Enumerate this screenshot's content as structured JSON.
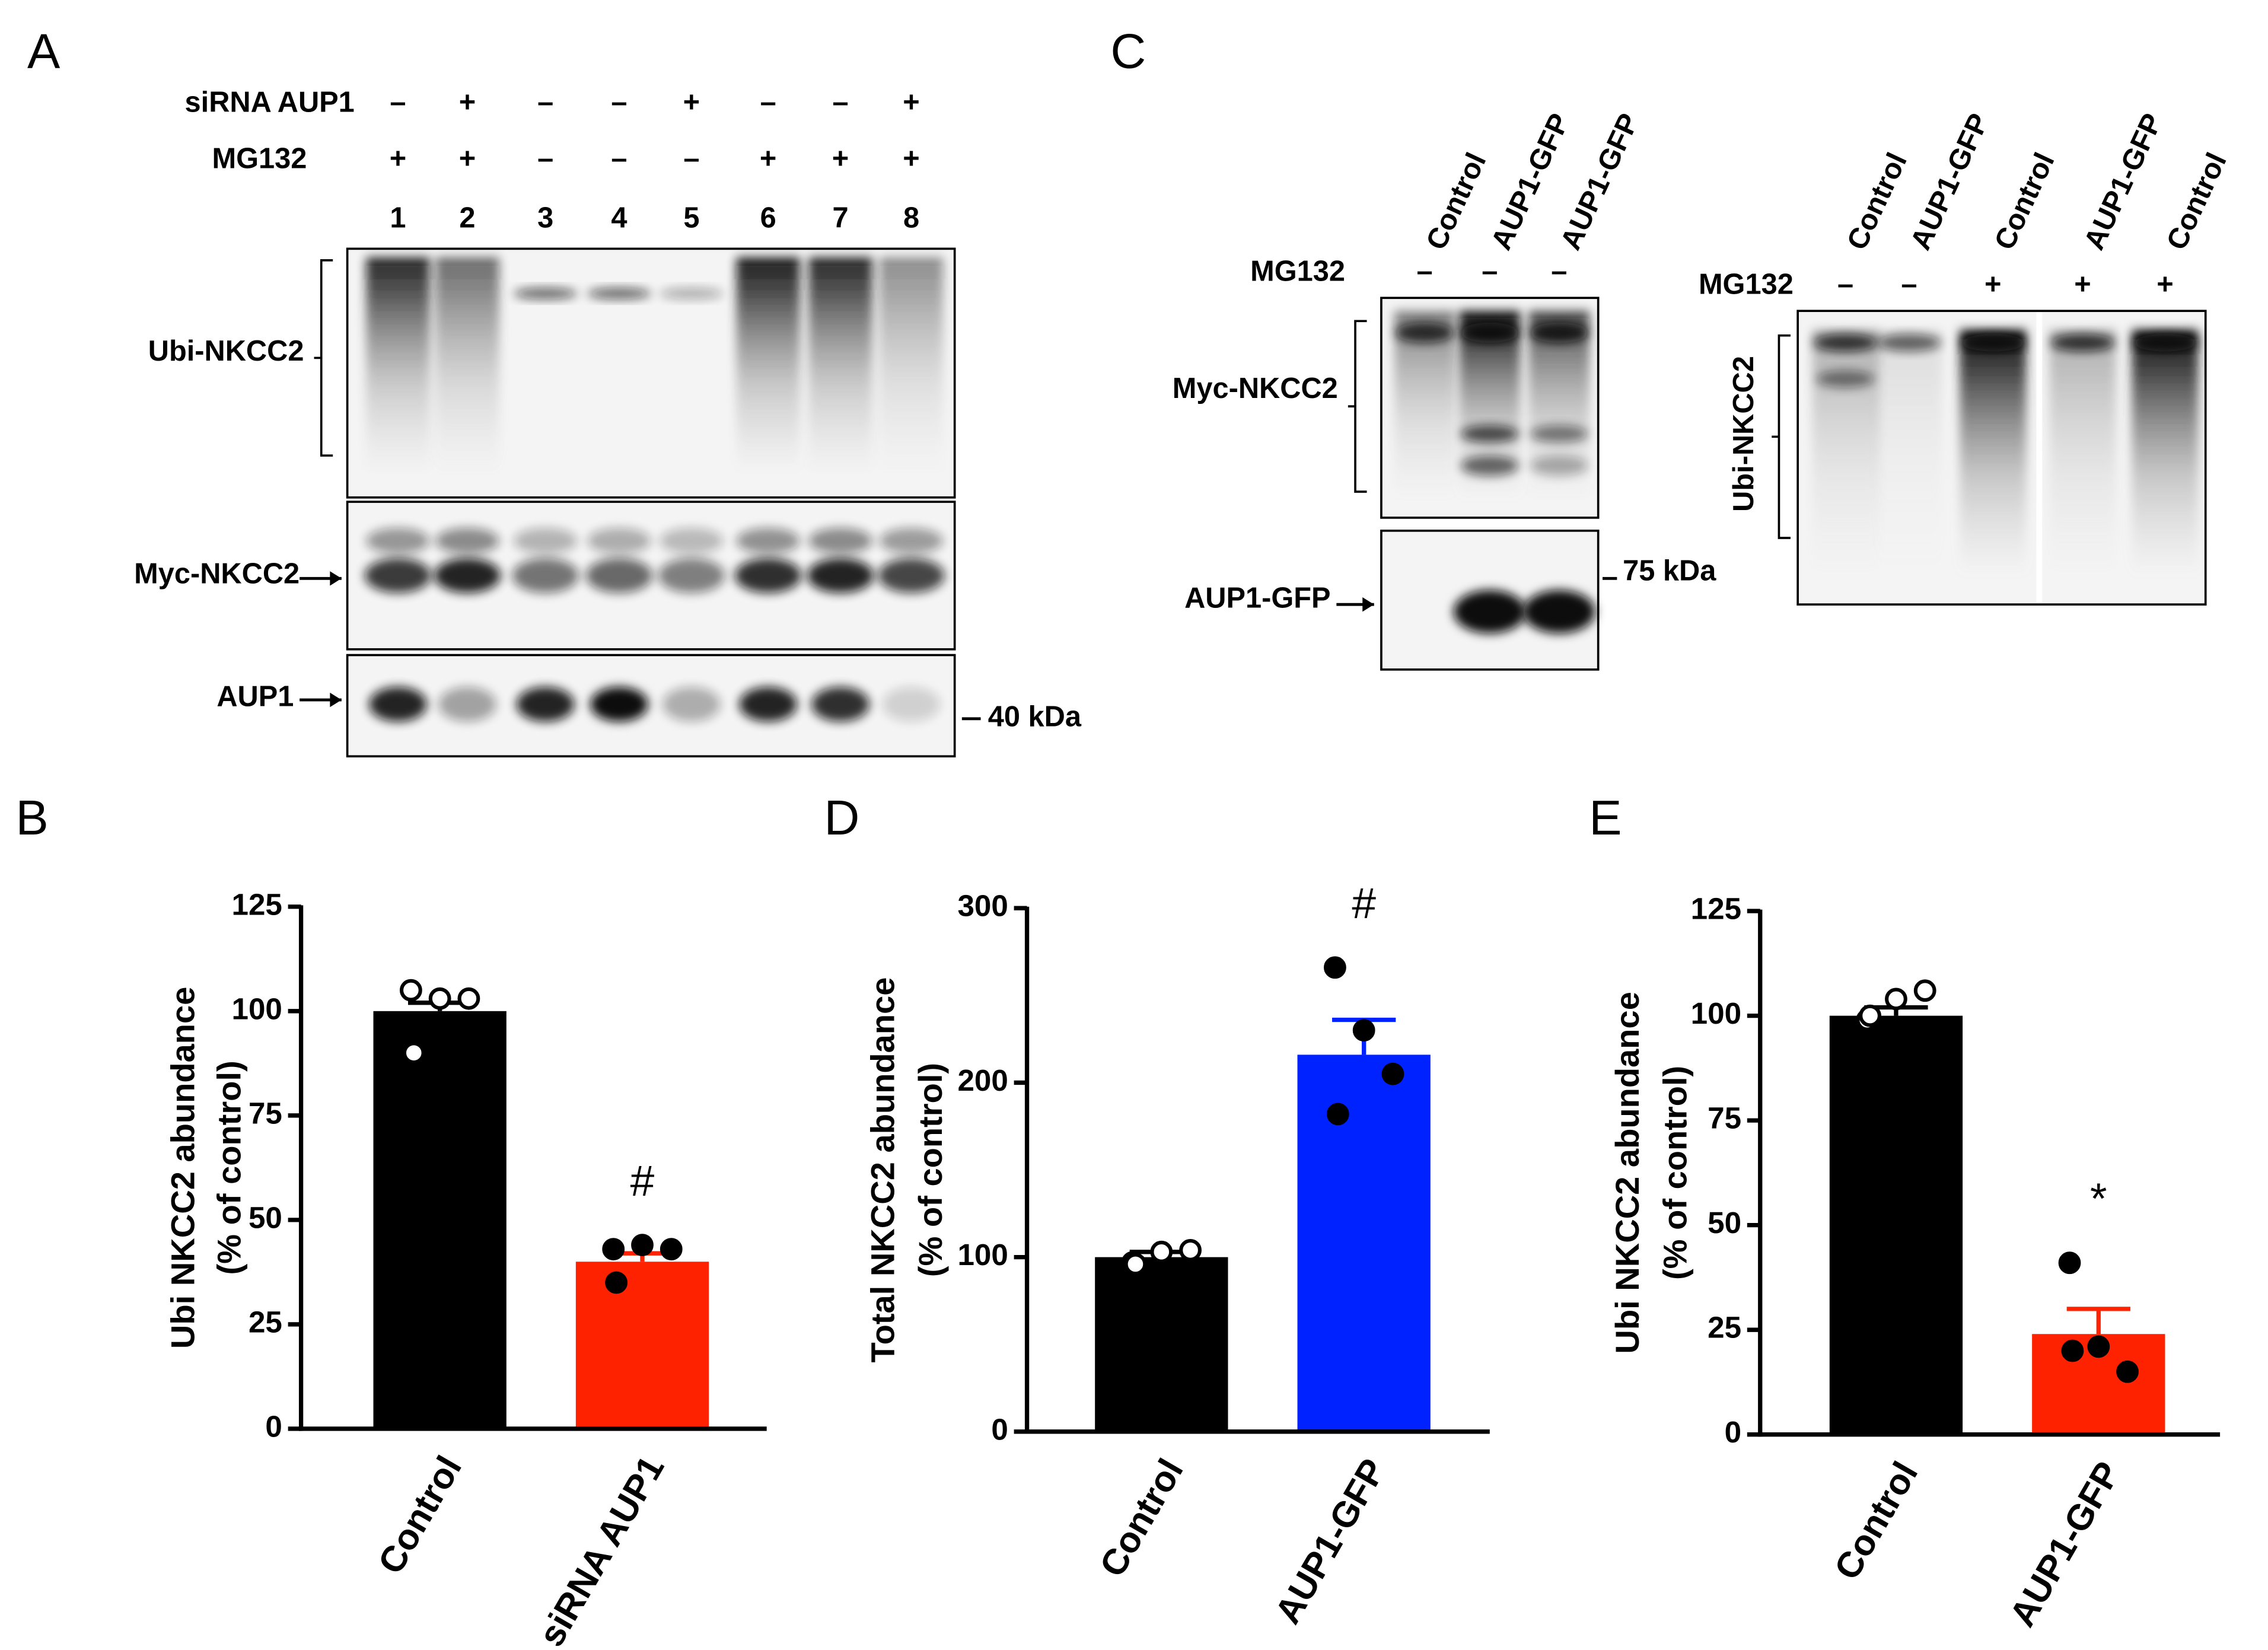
{
  "chart_data": [
    {
      "type": "bar",
      "panel": "B",
      "ylabel": [
        "Ubi NKCC2 abundance",
        "(% of control)"
      ],
      "categories": [
        "Control",
        "siRNA AUP1"
      ],
      "values": [
        100,
        40
      ],
      "errors": [
        2,
        2
      ],
      "points": [
        [
          105,
          103,
          103,
          90
        ],
        [
          43,
          44,
          43,
          35
        ]
      ],
      "point_colors": [
        "#ffffff",
        "#000000"
      ],
      "colors": [
        "#000000",
        "#ff2200"
      ],
      "ylim": [
        0,
        125
      ],
      "yticks": [
        0,
        25,
        50,
        75,
        100,
        125
      ],
      "annotations": [
        {
          "category": "siRNA AUP1",
          "text": "#"
        }
      ]
    },
    {
      "type": "bar",
      "panel": "D",
      "ylabel": [
        "Total  NKCC2 abundance",
        "(% of control)"
      ],
      "categories": [
        "Control",
        "AUP1-GFP"
      ],
      "values": [
        100,
        216
      ],
      "errors": [
        3,
        20
      ],
      "points": [
        [
          97,
          103,
          104,
          96
        ],
        [
          266,
          230,
          205,
          182
        ]
      ],
      "point_colors": [
        "#ffffff",
        "#000000"
      ],
      "colors": [
        "#000000",
        "#0022ff"
      ],
      "ylim": [
        0,
        300
      ],
      "yticks": [
        0,
        100,
        200,
        300
      ],
      "annotations": [
        {
          "category": "AUP1-GFP",
          "text": "#"
        }
      ]
    },
    {
      "type": "bar",
      "panel": "E",
      "ylabel": [
        "Ubi NKCC2 abundance",
        "(% of control)"
      ],
      "categories": [
        "Control",
        "AUP1-GFP"
      ],
      "values": [
        100,
        24
      ],
      "errors": [
        2,
        6
      ],
      "points": [
        [
          99,
          104,
          106,
          100
        ],
        [
          41,
          21,
          15,
          20
        ]
      ],
      "point_colors": [
        "#ffffff",
        "#000000"
      ],
      "colors": [
        "#000000",
        "#ff2200"
      ],
      "ylim": [
        0,
        125
      ],
      "yticks": [
        0,
        25,
        50,
        75,
        100,
        125
      ],
      "annotations": [
        {
          "category": "AUP1-GFP",
          "text": "*"
        }
      ]
    }
  ],
  "blots": {
    "a": {
      "panel": "A",
      "rows": [
        {
          "label": "siRNA AUP1",
          "signs": [
            "–",
            "+",
            "–",
            "–",
            "+",
            "–",
            "–",
            "+"
          ]
        },
        {
          "label": "MG132",
          "signs": [
            "+",
            "+",
            "–",
            "–",
            "–",
            "+",
            "+",
            "+"
          ]
        }
      ],
      "lanes": [
        "1",
        "2",
        "3",
        "4",
        "5",
        "6",
        "7",
        "8"
      ],
      "bands": [
        "Ubi-NKCC2",
        "Myc-NKCC2",
        "AUP1"
      ],
      "marker": "40 kDa"
    },
    "c_left": {
      "panel": "C",
      "lanes": [
        "Control",
        "AUP1-GFP",
        "AUP1-GFP"
      ],
      "rows": [
        {
          "label": "MG132",
          "signs": [
            "–",
            "–",
            "–"
          ]
        }
      ],
      "bands": [
        "Myc-NKCC2",
        "AUP1-GFP"
      ],
      "marker": "75 kDa"
    },
    "c_right": {
      "lanes": [
        "Control",
        "AUP1-GFP",
        "Control",
        "AUP1-GFP",
        "Control"
      ],
      "rows": [
        {
          "label": "MG132",
          "signs": [
            "–",
            "–",
            "+",
            "+",
            "+"
          ]
        }
      ],
      "bands": [
        "Ubi-NKCC2"
      ]
    }
  }
}
